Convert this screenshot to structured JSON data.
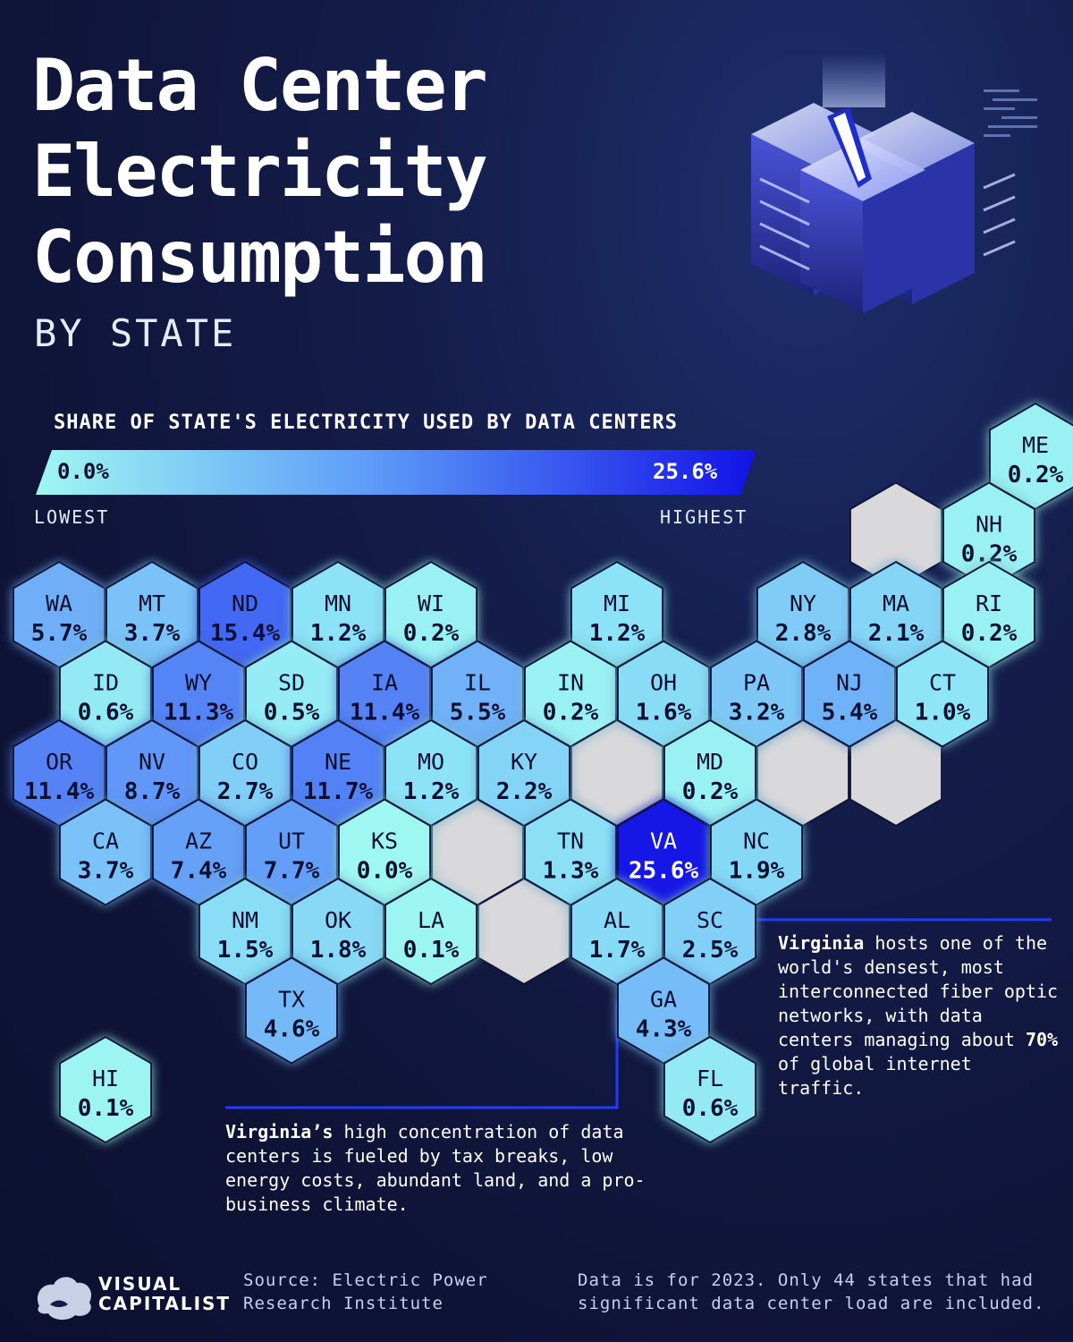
{
  "title": {
    "line1": "Data Center",
    "line2": "Electricity",
    "line3": "Consumption",
    "subtitle": "BY STATE"
  },
  "legend": {
    "title": "SHARE OF STATE'S ELECTRICITY USED BY DATA CENTERS",
    "min_label": "0.0%",
    "max_label": "25.6%",
    "low_caption": "LOWEST",
    "high_caption": "HIGHEST",
    "min_value": 0.0,
    "max_value": 25.6,
    "color_low": "#9ff7f2",
    "color_high": "#1212e6"
  },
  "colors": {
    "background": "#0f1438",
    "no_data": "#d9d9dc",
    "callout_line": "#1f3bff"
  },
  "states": [
    {
      "code": "ME",
      "value": 0.2,
      "label": "0.2%",
      "col": 10.5,
      "row": 0
    },
    {
      "code": "NH",
      "value": 0.2,
      "label": "0.2%",
      "col": 10,
      "row": 1
    },
    {
      "code": "WA",
      "value": 5.7,
      "label": "5.7%",
      "col": 0,
      "row": 2
    },
    {
      "code": "MT",
      "value": 3.7,
      "label": "3.7%",
      "col": 1,
      "row": 2
    },
    {
      "code": "ND",
      "value": 15.4,
      "label": "15.4%",
      "col": 2,
      "row": 2
    },
    {
      "code": "MN",
      "value": 1.2,
      "label": "1.2%",
      "col": 3,
      "row": 2
    },
    {
      "code": "WI",
      "value": 0.2,
      "label": "0.2%",
      "col": 4,
      "row": 2
    },
    {
      "code": "MI",
      "value": 1.2,
      "label": "1.2%",
      "col": 6,
      "row": 2
    },
    {
      "code": "NY",
      "value": 2.8,
      "label": "2.8%",
      "col": 8,
      "row": 2
    },
    {
      "code": "MA",
      "value": 2.1,
      "label": "2.1%",
      "col": 9,
      "row": 2
    },
    {
      "code": "RI",
      "value": 0.2,
      "label": "0.2%",
      "col": 10,
      "row": 2
    },
    {
      "code": "ID",
      "value": 0.6,
      "label": "0.6%",
      "col": 0.5,
      "row": 3
    },
    {
      "code": "WY",
      "value": 11.3,
      "label": "11.3%",
      "col": 1.5,
      "row": 3
    },
    {
      "code": "SD",
      "value": 0.5,
      "label": "0.5%",
      "col": 2.5,
      "row": 3
    },
    {
      "code": "IA",
      "value": 11.4,
      "label": "11.4%",
      "col": 3.5,
      "row": 3
    },
    {
      "code": "IL",
      "value": 5.5,
      "label": "5.5%",
      "col": 4.5,
      "row": 3
    },
    {
      "code": "IN",
      "value": 0.2,
      "label": "0.2%",
      "col": 5.5,
      "row": 3
    },
    {
      "code": "OH",
      "value": 1.6,
      "label": "1.6%",
      "col": 6.5,
      "row": 3
    },
    {
      "code": "PA",
      "value": 3.2,
      "label": "3.2%",
      "col": 7.5,
      "row": 3
    },
    {
      "code": "NJ",
      "value": 5.4,
      "label": "5.4%",
      "col": 8.5,
      "row": 3
    },
    {
      "code": "CT",
      "value": 1.0,
      "label": "1.0%",
      "col": 9.5,
      "row": 3
    },
    {
      "code": "OR",
      "value": 11.4,
      "label": "11.4%",
      "col": 0,
      "row": 4
    },
    {
      "code": "NV",
      "value": 8.7,
      "label": "8.7%",
      "col": 1,
      "row": 4
    },
    {
      "code": "CO",
      "value": 2.7,
      "label": "2.7%",
      "col": 2,
      "row": 4
    },
    {
      "code": "NE",
      "value": 11.7,
      "label": "11.7%",
      "col": 3,
      "row": 4
    },
    {
      "code": "MO",
      "value": 1.2,
      "label": "1.2%",
      "col": 4,
      "row": 4
    },
    {
      "code": "KY",
      "value": 2.2,
      "label": "2.2%",
      "col": 5,
      "row": 4
    },
    {
      "code": "MD",
      "value": 0.2,
      "label": "0.2%",
      "col": 7,
      "row": 4
    },
    {
      "code": "CA",
      "value": 3.7,
      "label": "3.7%",
      "col": 0.5,
      "row": 5
    },
    {
      "code": "AZ",
      "value": 7.4,
      "label": "7.4%",
      "col": 1.5,
      "row": 5
    },
    {
      "code": "UT",
      "value": 7.7,
      "label": "7.7%",
      "col": 2.5,
      "row": 5
    },
    {
      "code": "KS",
      "value": 0.0,
      "label": "0.0%",
      "col": 3.5,
      "row": 5
    },
    {
      "code": "TN",
      "value": 1.3,
      "label": "1.3%",
      "col": 5.5,
      "row": 5
    },
    {
      "code": "VA",
      "value": 25.6,
      "label": "25.6%",
      "col": 6.5,
      "row": 5
    },
    {
      "code": "NC",
      "value": 1.9,
      "label": "1.9%",
      "col": 7.5,
      "row": 5
    },
    {
      "code": "NM",
      "value": 1.5,
      "label": "1.5%",
      "col": 2,
      "row": 6
    },
    {
      "code": "OK",
      "value": 1.8,
      "label": "1.8%",
      "col": 3,
      "row": 6
    },
    {
      "code": "LA",
      "value": 0.1,
      "label": "0.1%",
      "col": 4,
      "row": 6
    },
    {
      "code": "AL",
      "value": 1.7,
      "label": "1.7%",
      "col": 6,
      "row": 6
    },
    {
      "code": "SC",
      "value": 2.5,
      "label": "2.5%",
      "col": 7,
      "row": 6
    },
    {
      "code": "TX",
      "value": 4.6,
      "label": "4.6%",
      "col": 2.5,
      "row": 7
    },
    {
      "code": "GA",
      "value": 4.3,
      "label": "4.3%",
      "col": 6.5,
      "row": 7
    },
    {
      "code": "HI",
      "value": 0.1,
      "label": "0.1%",
      "col": 0.5,
      "row": 8
    },
    {
      "code": "FL",
      "value": 0.6,
      "label": "0.6%",
      "col": 7,
      "row": 8
    }
  ],
  "empty_cells": [
    {
      "col": 9,
      "row": 1
    },
    {
      "col": 6,
      "row": 4
    },
    {
      "col": 8,
      "row": 4
    },
    {
      "col": 9,
      "row": 4
    },
    {
      "col": 4.5,
      "row": 5
    },
    {
      "col": 5,
      "row": 6
    }
  ],
  "notes": {
    "note1_bold": "Virginia",
    "note1_a": " hosts one of the world's densest, most interconnected fiber optic networks, with data centers managing about ",
    "note1_bold2": "70%",
    "note1_b": " of global internet traffic.",
    "note2_bold": "Virginia’s",
    "note2_text": " high concentration of data centers is fueled by tax breaks, low energy costs, abundant land, and a pro-business climate."
  },
  "footer": {
    "logo_line1": "VISUAL",
    "logo_line2": "CAPITALIST",
    "source_line1": "Source: Electric Power",
    "source_line2": "Research Institute",
    "footnote_line1": "Data is for 2023. Only 44 states that had",
    "footnote_line2": "significant data center load are included."
  }
}
